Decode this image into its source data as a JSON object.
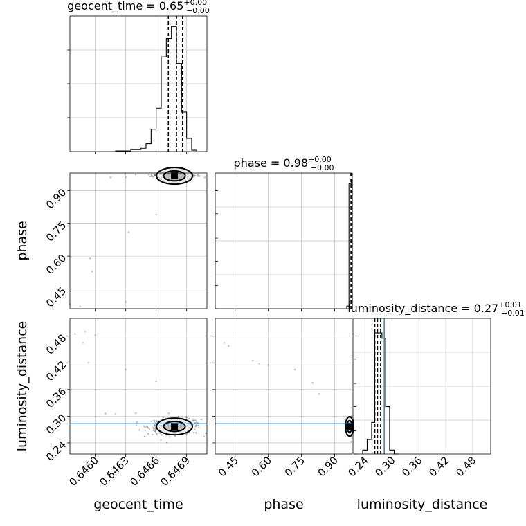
{
  "chart_data": {
    "type": "corner",
    "colors": {
      "hist": "#000000",
      "samples": "#333333",
      "truth": "#1f77b4",
      "grid": "#b0b0b0"
    },
    "params": [
      {
        "name": "geocent_time",
        "label": "geocent_time",
        "range": [
          0.64575,
          0.6471
        ],
        "ticks": [
          0.646,
          0.6463,
          0.6466,
          0.6469
        ],
        "tick_labels": [
          "0.6460",
          "0.6463",
          "0.6466",
          "0.6469"
        ]
      },
      {
        "name": "phase",
        "label": "phase",
        "range": [
          0.36,
          0.98
        ],
        "ticks": [
          0.45,
          0.6,
          0.75,
          0.9
        ],
        "tick_labels": [
          "0.45",
          "0.60",
          "0.75",
          "0.90"
        ]
      },
      {
        "name": "luminosity_distance",
        "label": "luminosity_distance",
        "range": [
          0.215,
          0.52
        ],
        "ticks": [
          0.24,
          0.3,
          0.36,
          0.42,
          0.48
        ],
        "tick_labels": [
          "0.24",
          "0.30",
          "0.36",
          "0.42",
          "0.48"
        ]
      }
    ],
    "titles": [
      {
        "base": "geocent_time = 0.65",
        "sup": "+0.00",
        "sub": "−0.00"
      },
      {
        "base": "phase = 0.98",
        "sup": "+0.00",
        "sub": "−0.00"
      },
      {
        "base": "luminosity_distance = 0.27",
        "sup": "+0.01",
        "sub": "−0.01"
      }
    ],
    "histograms": [
      {
        "param": "geocent_time",
        "ymax": 1.0,
        "edges": [
          0.6462,
          0.64635,
          0.64645,
          0.6465,
          0.64655,
          0.6466,
          0.64665,
          0.6467,
          0.64675,
          0.6468,
          0.64685,
          0.6469,
          0.64695,
          0.647
        ],
        "counts": [
          0.005,
          0.015,
          0.025,
          0.06,
          0.17,
          0.33,
          0.72,
          0.86,
          0.95,
          0.67,
          0.3,
          0.1,
          0.01
        ],
        "quantiles": [
          0.64672,
          0.6468,
          0.64686
        ]
      },
      {
        "param": "phase",
        "ymax": 1.0,
        "edges": [
          0.955,
          0.965,
          0.975,
          0.98
        ],
        "counts": [
          0.02,
          0.95,
          0.98
        ],
        "quantiles": [
          0.974,
          0.977,
          0.979
        ]
      },
      {
        "param": "luminosity_distance",
        "ymax": 1.0,
        "edges": [
          0.235,
          0.245,
          0.255,
          0.262,
          0.27,
          0.278,
          0.286,
          0.295,
          0.305,
          0.315
        ],
        "counts": [
          0.03,
          0.11,
          0.24,
          0.92,
          0.92,
          0.88,
          0.36,
          0.03,
          0.0
        ],
        "quantiles": [
          0.262,
          0.268,
          0.275
        ]
      }
    ],
    "truths": {
      "luminosity_distance": 0.283
    },
    "panels": [
      {
        "x": "geocent_time",
        "y": "phase",
        "dense": {
          "cx": 0.64678,
          "cy": 0.968,
          "sx": 0.00011,
          "sy": 0.004,
          "n": 220
        },
        "outliers": [
          [
            0.64575,
            0.38
          ],
          [
            0.64585,
            0.37
          ],
          [
            0.64595,
            0.59
          ],
          [
            0.64597,
            0.53
          ],
          [
            0.6463,
            0.39
          ],
          [
            0.64633,
            0.71
          ],
          [
            0.6466,
            0.79
          ],
          [
            0.64615,
            0.96
          ],
          [
            0.6463,
            0.962
          ]
        ],
        "contour_center": [
          0.64678,
          0.967
        ]
      },
      {
        "x": "geocent_time",
        "y": "luminosity_distance",
        "dense": {
          "cx": 0.64678,
          "cy": 0.277,
          "sx": 0.00013,
          "sy": 0.009,
          "n": 320
        },
        "outliers": [
          [
            0.6458,
            0.485
          ],
          [
            0.6459,
            0.49
          ],
          [
            0.64588,
            0.465
          ],
          [
            0.646,
            0.482
          ],
          [
            0.64593,
            0.42
          ],
          [
            0.6463,
            0.405
          ],
          [
            0.6466,
            0.378
          ],
          [
            0.6464,
            0.307
          ],
          [
            0.6461,
            0.306
          ],
          [
            0.6462,
            0.305
          ]
        ],
        "contour_center": [
          0.64678,
          0.277
        ]
      },
      {
        "x": "phase",
        "y": "luminosity_distance",
        "dense": {
          "cx": 0.976,
          "cy": 0.277,
          "sx": 0.004,
          "sy": 0.012,
          "n": 200
        },
        "outliers": [
          [
            0.4,
            0.465
          ],
          [
            0.42,
            0.458
          ],
          [
            0.53,
            0.425
          ],
          [
            0.56,
            0.418
          ],
          [
            0.6,
            0.415
          ],
          [
            0.72,
            0.405
          ],
          [
            0.8,
            0.375
          ],
          [
            0.83,
            0.35
          ]
        ],
        "contour_center": [
          0.976,
          0.277
        ]
      }
    ]
  }
}
